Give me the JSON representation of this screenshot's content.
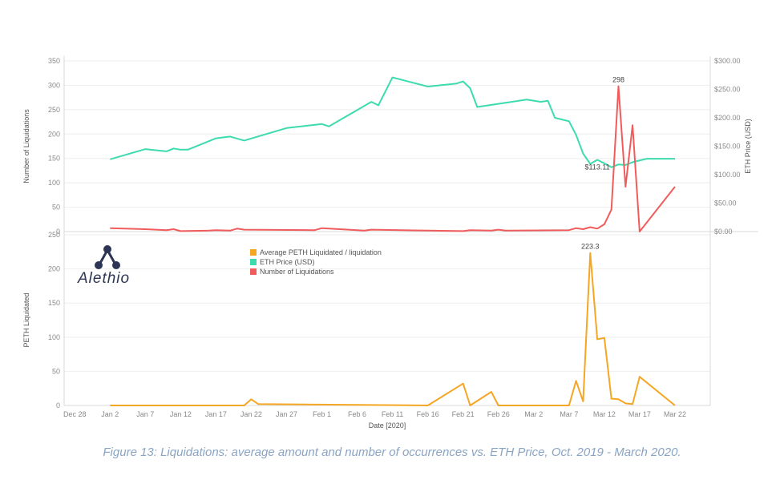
{
  "caption": "Figure 13: Liquidations: average amount and number of occurrences vs. ETH Price, Oct. 2019 - March 2020.",
  "logo": {
    "text": "Alethio",
    "icon": "alethio-triangle-logo-icon"
  },
  "chart_data": {
    "type": "line",
    "x_label": "Date [2020]",
    "x_ticks": [
      {
        "label": "Dec 28",
        "day": -4
      },
      {
        "label": "Jan 2",
        "day": 1
      },
      {
        "label": "Jan 7",
        "day": 6
      },
      {
        "label": "Jan 12",
        "day": 11
      },
      {
        "label": "Jan 17",
        "day": 16
      },
      {
        "label": "Jan 22",
        "day": 21
      },
      {
        "label": "Jan 27",
        "day": 26
      },
      {
        "label": "Feb 1",
        "day": 31
      },
      {
        "label": "Feb 6",
        "day": 36
      },
      {
        "label": "Feb 11",
        "day": 41
      },
      {
        "label": "Feb 16",
        "day": 46
      },
      {
        "label": "Feb 21",
        "day": 51
      },
      {
        "label": "Feb 26",
        "day": 56
      },
      {
        "label": "Mar 2",
        "day": 61
      },
      {
        "label": "Mar 7",
        "day": 66
      },
      {
        "label": "Mar 12",
        "day": 71
      },
      {
        "label": "Mar 17",
        "day": 76
      },
      {
        "label": "Mar 22",
        "day": 81
      }
    ],
    "x_range_days": [
      -5.5,
      86
    ],
    "legend": {
      "placement": "top-center (bottom panel)",
      "entries": [
        {
          "name": "Average PETH Liquidated / liquidation",
          "color": "#f5a623"
        },
        {
          "name": "ETH Price (USD)",
          "color": "#3ddbae"
        },
        {
          "name": "Number of Liquidations",
          "color": "#f05c5c"
        }
      ]
    },
    "panels": [
      {
        "id": "top",
        "y_left": {
          "label": "Number of Liquidations",
          "range": [
            0,
            350
          ],
          "ticks": [
            "0",
            "50",
            "100",
            "150",
            "200",
            "250",
            "300",
            "350"
          ]
        },
        "y_right": {
          "label": "ETH Price (USD)",
          "range": [
            0,
            300
          ],
          "ticks": [
            "$0.00",
            "$50.00",
            "$100.00",
            "$150.00",
            "$200.00",
            "$250.00",
            "$300.00"
          ]
        },
        "series": [
          {
            "name": "ETH Price (USD)",
            "axis": "right",
            "color": "#3ddbae",
            "points": [
              [
                1,
                127
              ],
              [
                6,
                145
              ],
              [
                9,
                141
              ],
              [
                10,
                146
              ],
              [
                11,
                144
              ],
              [
                12,
                144
              ],
              [
                16,
                164
              ],
              [
                18,
                167
              ],
              [
                20,
                160
              ],
              [
                26,
                182
              ],
              [
                31,
                189
              ],
              [
                32,
                185
              ],
              [
                38,
                228
              ],
              [
                39,
                222
              ],
              [
                41,
                271
              ],
              [
                46,
                255
              ],
              [
                50,
                260
              ],
              [
                51,
                264
              ],
              [
                52,
                252
              ],
              [
                53,
                219
              ],
              [
                60,
                232
              ],
              [
                62,
                228
              ],
              [
                63,
                230
              ],
              [
                64,
                200
              ],
              [
                66,
                194
              ],
              [
                67,
                170
              ],
              [
                68,
                137
              ],
              [
                69,
                119
              ],
              [
                70,
                126
              ],
              [
                71,
                120
              ],
              [
                72,
                113.11
              ],
              [
                73,
                118
              ],
              [
                74,
                117
              ],
              [
                75,
                122
              ],
              [
                77,
                128
              ],
              [
                81,
                128
              ]
            ]
          },
          {
            "name": "Number of Liquidations",
            "axis": "left",
            "color": "#f05c5c",
            "points": [
              [
                1,
                7
              ],
              [
                6,
                5
              ],
              [
                9,
                3
              ],
              [
                10,
                5
              ],
              [
                11,
                1
              ],
              [
                15,
                2
              ],
              [
                16,
                3
              ],
              [
                18,
                2
              ],
              [
                19,
                6
              ],
              [
                20,
                4
              ],
              [
                30,
                3
              ],
              [
                31,
                7
              ],
              [
                37,
                2
              ],
              [
                38,
                4
              ],
              [
                46,
                2
              ],
              [
                51,
                1
              ],
              [
                52,
                3
              ],
              [
                55,
                2
              ],
              [
                56,
                4
              ],
              [
                57,
                2
              ],
              [
                66,
                3
              ],
              [
                67,
                7
              ],
              [
                68,
                5
              ],
              [
                69,
                9
              ],
              [
                70,
                6
              ],
              [
                71,
                15
              ],
              [
                72,
                45
              ],
              [
                73,
                298
              ],
              [
                74,
                92
              ],
              [
                75,
                218
              ],
              [
                76,
                0
              ],
              [
                81,
                92
              ]
            ]
          }
        ],
        "annotations": [
          {
            "text": "298",
            "series": "Number of Liquidations",
            "x": 73,
            "y": 298
          },
          {
            "text": "$113.11",
            "series": "ETH Price (USD)",
            "x": 72,
            "y": 113.11
          }
        ]
      },
      {
        "id": "bottom",
        "y_left": {
          "label": "PETH Liquidated",
          "range": [
            0,
            250
          ],
          "ticks": [
            "0",
            "50",
            "100",
            "150",
            "200",
            "250"
          ]
        },
        "series": [
          {
            "name": "Average PETH Liquidated / liquidation",
            "axis": "left",
            "color": "#f5a623",
            "points": [
              [
                1,
                0
              ],
              [
                20,
                0
              ],
              [
                21,
                9
              ],
              [
                22,
                2
              ],
              [
                46,
                0
              ],
              [
                51,
                32
              ],
              [
                52,
                0
              ],
              [
                55,
                20
              ],
              [
                56,
                0
              ],
              [
                66,
                0
              ],
              [
                67,
                36
              ],
              [
                68,
                6
              ],
              [
                69,
                223.3
              ],
              [
                70,
                97
              ],
              [
                71,
                99
              ],
              [
                72,
                10
              ],
              [
                73,
                9
              ],
              [
                74,
                3
              ],
              [
                75,
                2
              ],
              [
                76,
                42
              ],
              [
                81,
                0
              ]
            ]
          }
        ],
        "annotations": [
          {
            "text": "223.3",
            "series": "Average PETH Liquidated / liquidation",
            "x": 69,
            "y": 223.3
          }
        ]
      }
    ]
  }
}
